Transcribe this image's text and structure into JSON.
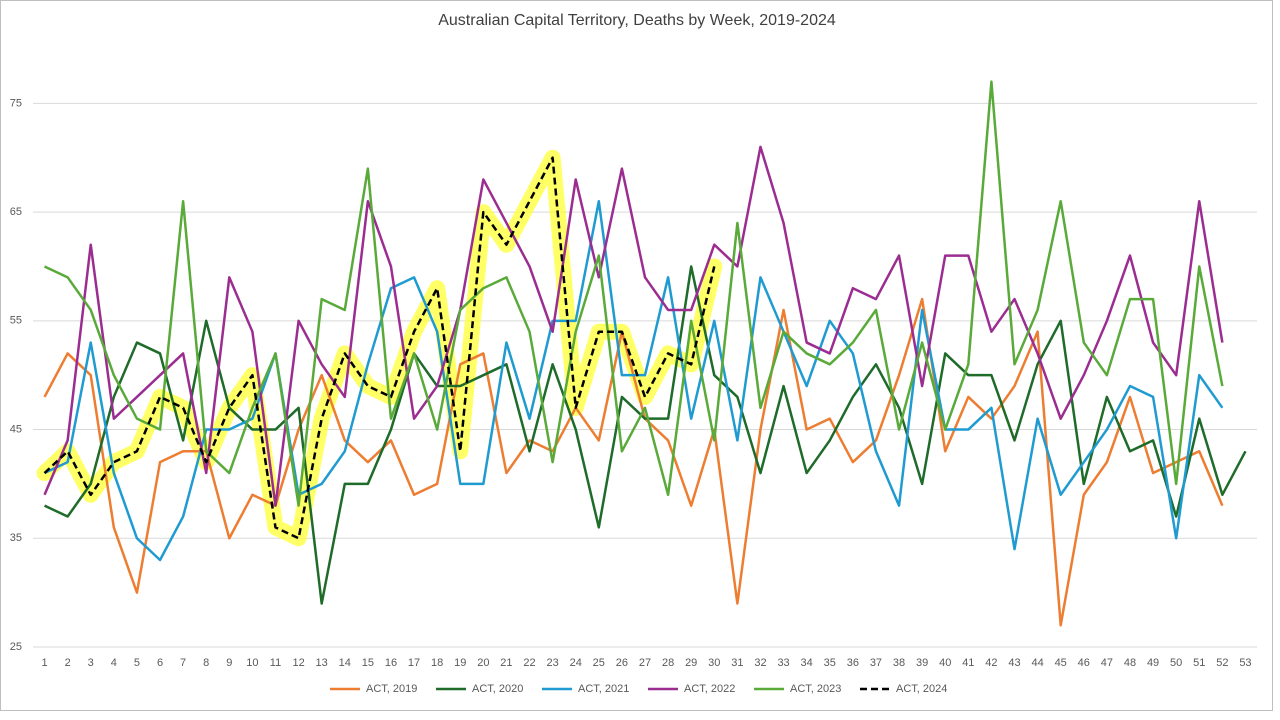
{
  "chart_data": {
    "type": "line",
    "title": "Australian Capital Territory, Deaths by Week, 2019-2024",
    "categories": [
      "1",
      "2",
      "3",
      "4",
      "5",
      "6",
      "7",
      "8",
      "9",
      "10",
      "11",
      "12",
      "13",
      "14",
      "15",
      "16",
      "17",
      "18",
      "19",
      "20",
      "21",
      "22",
      "23",
      "24",
      "25",
      "26",
      "27",
      "28",
      "29",
      "30",
      "31",
      "32",
      "33",
      "34",
      "35",
      "36",
      "37",
      "38",
      "39",
      "40",
      "41",
      "42",
      "43",
      "44",
      "45",
      "46",
      "47",
      "48",
      "49",
      "50",
      "51",
      "52",
      "53"
    ],
    "ylim": [
      25,
      80
    ],
    "yticks": [
      25,
      35,
      45,
      55,
      65,
      75
    ],
    "grid": true,
    "legend": "bottom",
    "series": [
      {
        "name": "ACT, 2019",
        "color": "#ed7d31",
        "values": [
          48,
          52,
          50,
          36,
          30,
          42,
          43,
          43,
          35,
          39,
          38,
          45,
          50,
          44,
          42,
          44,
          39,
          40,
          51,
          52,
          41,
          44,
          43,
          47,
          44,
          54,
          46,
          44,
          38,
          45,
          29,
          45,
          56,
          45,
          46,
          42,
          44,
          50,
          57,
          43,
          48,
          46,
          49,
          54,
          27,
          39,
          42,
          48,
          41,
          42,
          43,
          38,
          null
        ]
      },
      {
        "name": "ACT, 2020",
        "color": "#1e6b2a",
        "values": [
          38,
          37,
          40,
          48,
          53,
          52,
          44,
          55,
          47,
          45,
          45,
          47,
          29,
          40,
          40,
          45,
          52,
          49,
          49,
          50,
          51,
          43,
          51,
          45,
          36,
          48,
          46,
          46,
          60,
          50,
          48,
          41,
          49,
          41,
          44,
          48,
          51,
          47,
          40,
          52,
          50,
          50,
          44,
          51,
          55,
          40,
          48,
          43,
          44,
          37,
          46,
          39,
          43
        ]
      },
      {
        "name": "ACT, 2021",
        "color": "#1f9bd1",
        "values": [
          41,
          42,
          53,
          41,
          35,
          33,
          37,
          45,
          45,
          46,
          52,
          39,
          40,
          43,
          51,
          58,
          59,
          54,
          40,
          40,
          53,
          46,
          55,
          55,
          66,
          50,
          50,
          59,
          46,
          55,
          44,
          59,
          54,
          49,
          55,
          52,
          43,
          38,
          56,
          45,
          45,
          47,
          34,
          46,
          39,
          42,
          45,
          49,
          48,
          35,
          50,
          47,
          null
        ]
      },
      {
        "name": "ACT, 2022",
        "color": "#9b2d91",
        "values": [
          39,
          44,
          62,
          46,
          48,
          50,
          52,
          41,
          59,
          54,
          38,
          55,
          51,
          48,
          66,
          60,
          46,
          49,
          56,
          68,
          64,
          60,
          54,
          68,
          59,
          69,
          59,
          56,
          56,
          62,
          60,
          71,
          64,
          53,
          52,
          58,
          57,
          61,
          49,
          61,
          61,
          54,
          57,
          52,
          46,
          50,
          55,
          61,
          53,
          50,
          66,
          53,
          null
        ]
      },
      {
        "name": "ACT, 2023",
        "color": "#5aaa3a",
        "values": [
          60,
          59,
          56,
          50,
          46,
          45,
          66,
          43,
          41,
          47,
          52,
          38,
          57,
          56,
          69,
          46,
          52,
          45,
          56,
          58,
          59,
          54,
          42,
          54,
          61,
          43,
          47,
          39,
          55,
          44,
          64,
          47,
          54,
          52,
          51,
          53,
          56,
          45,
          53,
          45,
          51,
          77,
          51,
          56,
          66,
          53,
          50,
          57,
          57,
          40,
          60,
          49,
          null
        ]
      },
      {
        "name": "ACT, 2024",
        "color": "#000000",
        "dashed": true,
        "highlight": "#ffff33",
        "values": [
          41,
          43,
          39,
          42,
          43,
          48,
          47,
          42,
          47,
          50,
          36,
          35,
          46,
          52,
          49,
          48,
          54,
          58,
          43,
          65,
          62,
          66,
          70,
          47,
          54,
          54,
          48,
          52,
          51,
          60,
          null,
          null,
          null,
          null,
          null,
          null,
          null,
          null,
          null,
          null,
          null,
          null,
          null,
          null,
          null,
          null,
          null,
          null,
          null,
          null,
          null,
          null,
          null
        ]
      }
    ]
  }
}
